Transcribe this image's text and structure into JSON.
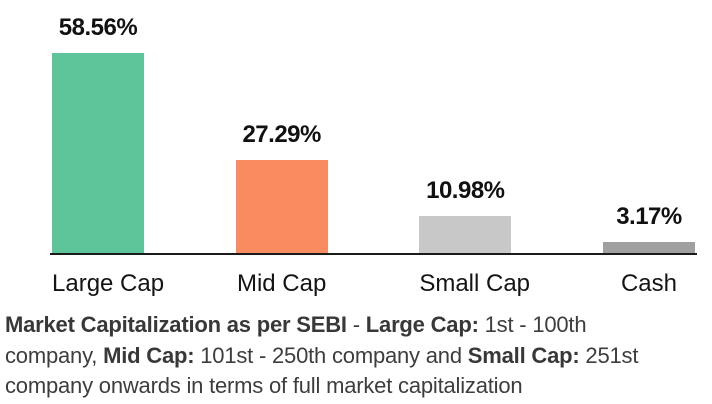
{
  "chart_data": {
    "type": "bar",
    "categories": [
      "Large Cap",
      "Mid Cap",
      "Small Cap",
      "Cash"
    ],
    "values": [
      58.56,
      27.29,
      10.98,
      3.17
    ],
    "value_labels": [
      "58.56%",
      "27.29%",
      "10.98%",
      "3.17%"
    ],
    "colors": [
      "#5EC49A",
      "#F88B60",
      "#C8C8C8",
      "#A0A0A0"
    ],
    "title": "",
    "xlabel": "",
    "ylabel": "",
    "ylim": [
      0,
      75
    ],
    "grid": false,
    "legend": false,
    "data_labels_position": "above-bars",
    "axis_line_color": "#1a1a1a"
  },
  "footnote": {
    "lines": [
      [
        {
          "text": "Market Capitalization as per SEBI",
          "bold": true
        },
        {
          "text": " - ",
          "bold": false
        },
        {
          "text": "Large Cap:",
          "bold": true
        },
        {
          "text": " 1st - 100th",
          "bold": false
        }
      ],
      [
        {
          "text": "company, ",
          "bold": false
        },
        {
          "text": "Mid Cap:",
          "bold": true
        },
        {
          "text": " 101st - 250th company and ",
          "bold": false
        },
        {
          "text": "Small Cap:",
          "bold": true
        },
        {
          "text": " 251st",
          "bold": false
        }
      ],
      [
        {
          "text": "company onwards in terms of full market capitalization",
          "bold": false
        }
      ]
    ]
  }
}
